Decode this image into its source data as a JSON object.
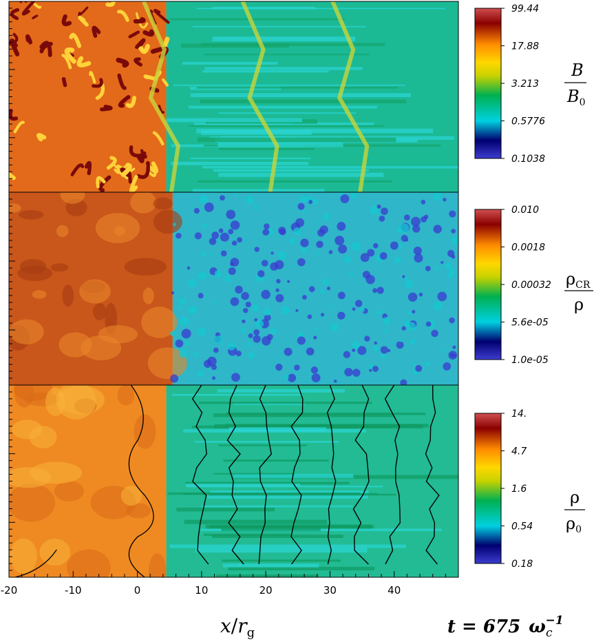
{
  "chart_data": {
    "type": "heatmap",
    "xlabel": {
      "var": "x",
      "sep": "/",
      "denom": "r",
      "denom_sub": "g"
    },
    "xlim": [
      -20,
      50
    ],
    "xticks": [
      "-20",
      "-10",
      "0",
      "10",
      "20",
      "30",
      "40"
    ],
    "time_label": {
      "prefix": "t = 675",
      "omega": "ω",
      "sub": "c",
      "sup": "−1"
    },
    "panels": [
      {
        "id": "B",
        "label_num": "B",
        "label_num_sub": "",
        "label_den": "B",
        "label_den_sub": "0",
        "colorbar_ticks": [
          "99.44",
          "17.88",
          "3.213",
          "0.5776",
          "0.1038"
        ],
        "shock_x": 4.5
      },
      {
        "id": "rhoCR",
        "label_num": "ρ",
        "label_num_sub": "CR",
        "label_den": "ρ",
        "label_den_sub": "",
        "colorbar_ticks": [
          "0.010",
          "0.0018",
          "0.00032",
          "5.6e-05",
          "1.0e-05"
        ],
        "shock_x": 5.5
      },
      {
        "id": "rho",
        "label_num": "ρ",
        "label_num_sub": "",
        "label_den": "ρ",
        "label_den_sub": "0",
        "colorbar_ticks": [
          "14.",
          "4.7",
          "1.6",
          "0.54",
          "0.18"
        ],
        "shock_x": 4.5
      }
    ]
  },
  "colors": {
    "colormap": [
      "#3c3cd0",
      "#000070",
      "#00d0e0",
      "#00b050",
      "#c8d200",
      "#ffd700",
      "#ff8c00",
      "#8b0000",
      "#d05050"
    ],
    "upstream_base": "#1fb89a",
    "downstream_base": "#d76a1c"
  }
}
